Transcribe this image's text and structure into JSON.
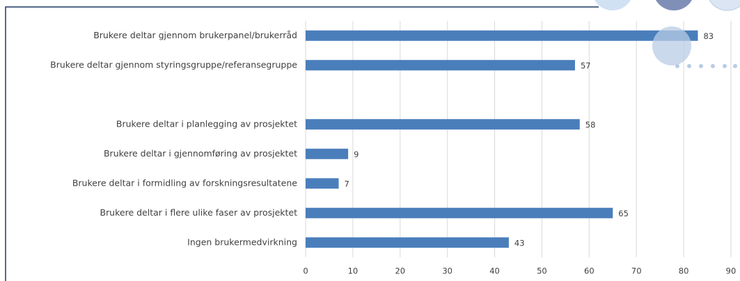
{
  "chart_data": {
    "type": "bar",
    "orientation": "horizontal",
    "categories": [
      "Brukere deltar gjennom brukerpanel/brukerråd",
      "Brukere deltar gjennom styringsgruppe/referansegruppe",
      null,
      "Brukere deltar i planlegging av prosjektet",
      "Brukere deltar i gjennomføring av prosjektet",
      "Brukere deltar i formidling av forskningsresultatene",
      "Brukere deltar i flere ulike faser av prosjektet",
      "Ingen brukermedvirkning"
    ],
    "values": [
      83,
      57,
      null,
      58,
      9,
      7,
      65,
      43
    ],
    "color": "#4a7ebb",
    "xlim": [
      0,
      90
    ],
    "xticks": [
      0,
      10,
      20,
      30,
      40,
      50,
      60,
      70,
      80,
      90
    ],
    "grid": true
  }
}
